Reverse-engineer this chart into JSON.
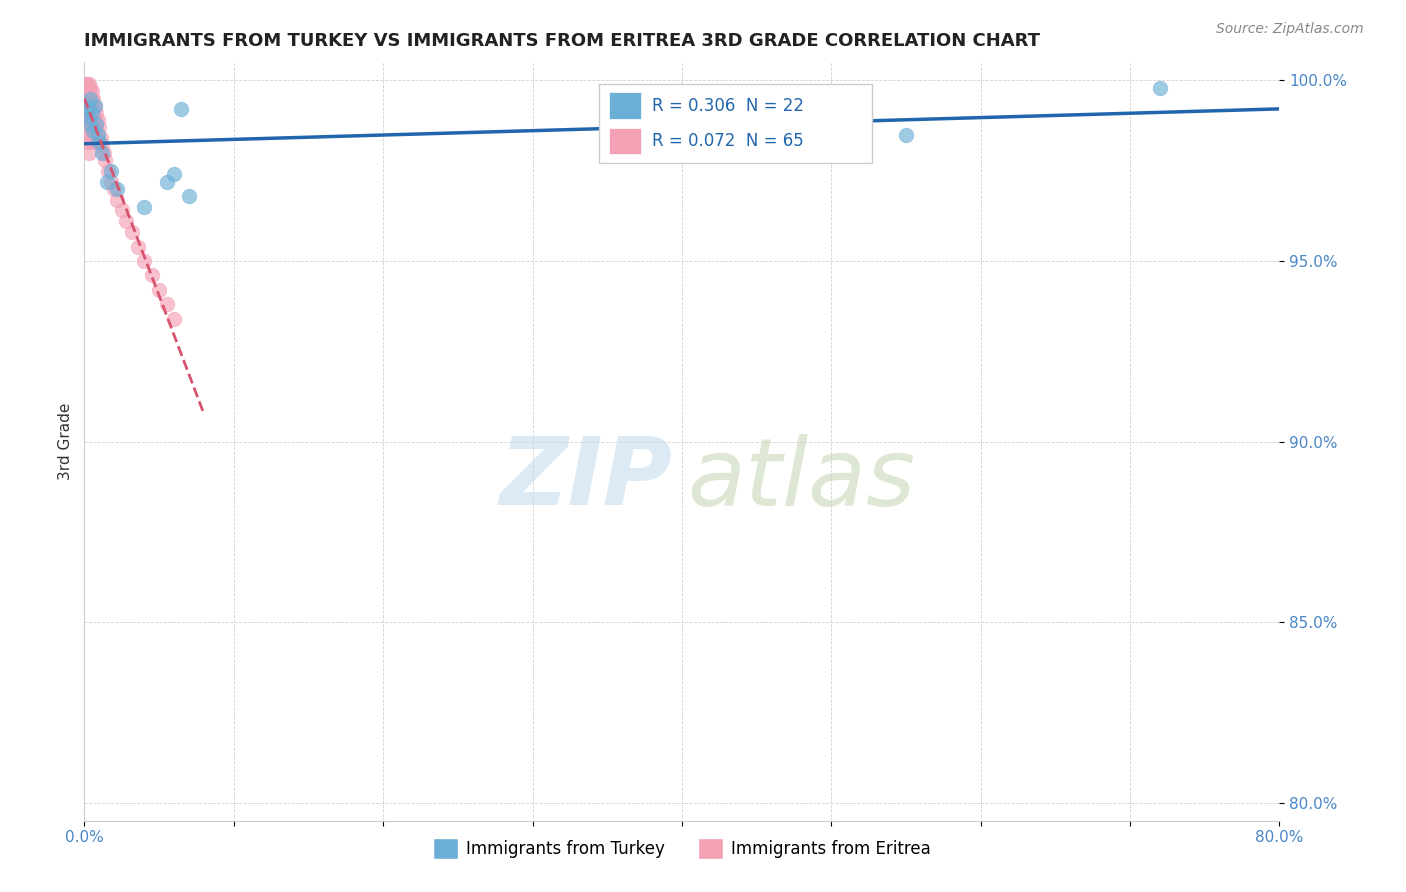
{
  "title": "IMMIGRANTS FROM TURKEY VS IMMIGRANTS FROM ERITREA 3RD GRADE CORRELATION CHART",
  "source": "Source: ZipAtlas.com",
  "ylabel": "3rd Grade",
  "xlim": [
    0.0,
    0.8
  ],
  "ylim": [
    0.795,
    1.005
  ],
  "yticks": [
    0.8,
    0.85,
    0.9,
    0.95,
    1.0
  ],
  "ytick_labels": [
    "80.0%",
    "85.0%",
    "90.0%",
    "95.0%",
    "100.0%"
  ],
  "xticks": [
    0.0,
    0.1,
    0.2,
    0.3,
    0.4,
    0.5,
    0.6,
    0.7,
    0.8
  ],
  "xtick_labels": [
    "0.0%",
    "",
    "",
    "",
    "",
    "",
    "",
    "",
    "80.0%"
  ],
  "turkey_R": 0.306,
  "turkey_N": 22,
  "eritrea_R": 0.072,
  "eritrea_N": 65,
  "turkey_color": "#6baed6",
  "eritrea_color": "#f4a0b5",
  "turkey_line_color": "#2166ac",
  "eritrea_line_color": "#d6546e",
  "background_color": "#ffffff",
  "turkey_x": [
    0.002,
    0.003,
    0.003,
    0.004,
    0.004,
    0.005,
    0.006,
    0.007,
    0.008,
    0.009,
    0.01,
    0.012,
    0.015,
    0.018,
    0.022,
    0.04,
    0.055,
    0.06,
    0.065,
    0.07,
    0.55,
    0.72
  ],
  "turkey_y": [
    0.993,
    0.992,
    0.99,
    0.995,
    0.988,
    0.991,
    0.986,
    0.993,
    0.988,
    0.985,
    0.983,
    0.98,
    0.972,
    0.975,
    0.97,
    0.965,
    0.972,
    0.974,
    0.992,
    0.968,
    0.985,
    0.998
  ],
  "eritrea_x": [
    0.001,
    0.001,
    0.001,
    0.001,
    0.001,
    0.002,
    0.002,
    0.002,
    0.002,
    0.002,
    0.002,
    0.002,
    0.003,
    0.003,
    0.003,
    0.003,
    0.003,
    0.003,
    0.003,
    0.003,
    0.003,
    0.003,
    0.004,
    0.004,
    0.004,
    0.004,
    0.004,
    0.004,
    0.005,
    0.005,
    0.005,
    0.005,
    0.005,
    0.005,
    0.006,
    0.006,
    0.006,
    0.006,
    0.007,
    0.007,
    0.007,
    0.008,
    0.008,
    0.008,
    0.009,
    0.009,
    0.01,
    0.01,
    0.011,
    0.012,
    0.013,
    0.014,
    0.016,
    0.018,
    0.02,
    0.022,
    0.025,
    0.028,
    0.032,
    0.036,
    0.04,
    0.045,
    0.05,
    0.055,
    0.06
  ],
  "eritrea_y": [
    0.999,
    0.997,
    0.995,
    0.993,
    0.991,
    0.999,
    0.997,
    0.995,
    0.993,
    0.991,
    0.989,
    0.987,
    0.999,
    0.997,
    0.995,
    0.993,
    0.991,
    0.989,
    0.987,
    0.985,
    0.983,
    0.98,
    0.998,
    0.996,
    0.994,
    0.991,
    0.988,
    0.985,
    0.997,
    0.995,
    0.992,
    0.989,
    0.986,
    0.983,
    0.995,
    0.992,
    0.988,
    0.984,
    0.993,
    0.989,
    0.985,
    0.991,
    0.987,
    0.983,
    0.989,
    0.985,
    0.987,
    0.983,
    0.984,
    0.982,
    0.98,
    0.978,
    0.975,
    0.972,
    0.97,
    0.967,
    0.964,
    0.961,
    0.958,
    0.954,
    0.95,
    0.946,
    0.942,
    0.938,
    0.934
  ]
}
